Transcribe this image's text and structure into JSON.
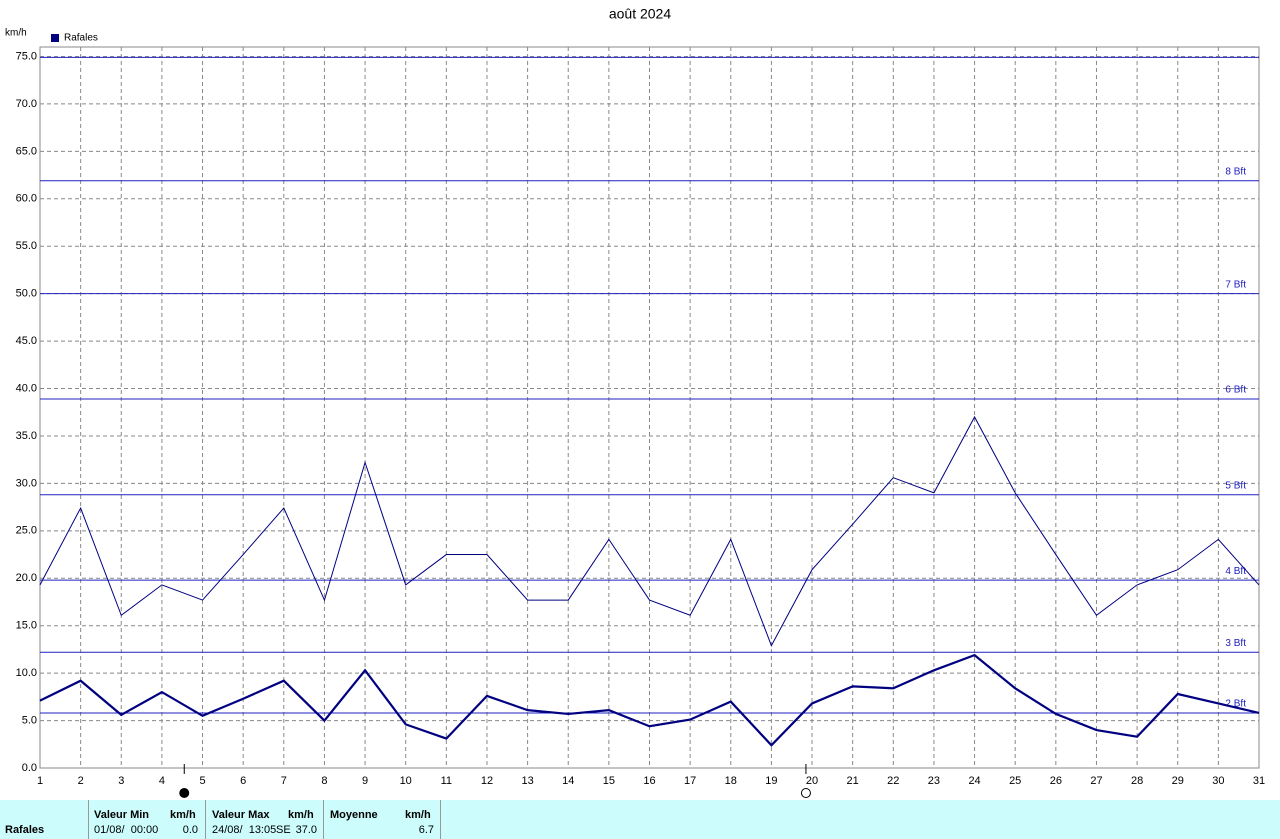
{
  "chart_data": {
    "type": "line",
    "title": "août 2024",
    "y_label": "km/h",
    "x": [
      1,
      2,
      3,
      4,
      5,
      6,
      7,
      8,
      9,
      10,
      11,
      12,
      13,
      14,
      15,
      16,
      17,
      18,
      19,
      20,
      21,
      22,
      23,
      24,
      25,
      26,
      27,
      28,
      29,
      30,
      31
    ],
    "series": [
      {
        "name": "Rafales",
        "color": "#000080",
        "width": 1,
        "values": [
          19.3,
          27.4,
          16.1,
          19.3,
          17.7,
          22.5,
          27.4,
          17.7,
          32.2,
          19.3,
          22.5,
          22.5,
          17.7,
          17.7,
          24.1,
          17.7,
          16.1,
          24.1,
          12.9,
          20.9,
          25.7,
          30.6,
          29.0,
          37.0,
          29.0,
          22.5,
          16.1,
          19.3,
          20.9,
          24.1,
          19.3
        ]
      },
      {
        "color": "#000080",
        "width": 2.2,
        "values": [
          7.1,
          9.2,
          5.6,
          8.0,
          5.5,
          7.3,
          9.2,
          5.0,
          10.3,
          4.6,
          3.1,
          7.6,
          6.1,
          5.7,
          6.1,
          4.4,
          5.1,
          7.0,
          2.4,
          6.8,
          8.6,
          8.4,
          10.3,
          11.9,
          8.4,
          5.7,
          4.0,
          3.3,
          7.8,
          6.8,
          5.8
        ]
      }
    ],
    "xlim": [
      1,
      31
    ],
    "xticks": [
      1,
      2,
      3,
      4,
      5,
      6,
      7,
      8,
      9,
      10,
      11,
      12,
      13,
      14,
      15,
      16,
      17,
      18,
      19,
      20,
      21,
      22,
      23,
      24,
      25,
      26,
      27,
      28,
      29,
      30,
      31
    ],
    "ylim": [
      0,
      76
    ],
    "yticks": [
      {
        "value": 0,
        "label": "0.0"
      },
      {
        "value": 5,
        "label": "5.0"
      },
      {
        "value": 10,
        "label": "10.0"
      },
      {
        "value": 15,
        "label": "15.0"
      },
      {
        "value": 20,
        "label": "20.0"
      },
      {
        "value": 25,
        "label": "25.0"
      },
      {
        "value": 30,
        "label": "30.0"
      },
      {
        "value": 35,
        "label": "35.0"
      },
      {
        "value": 40,
        "label": "40.0"
      },
      {
        "value": 45,
        "label": "45.0"
      },
      {
        "value": 50,
        "label": "50.0"
      },
      {
        "value": 55,
        "label": "55.0"
      },
      {
        "value": 60,
        "label": "60.0"
      },
      {
        "value": 65,
        "label": "65.0"
      },
      {
        "value": 70,
        "label": "70.0"
      },
      {
        "value": 75,
        "label": "75.0"
      }
    ],
    "grid": true,
    "legend": "top-left",
    "reference_lines": [
      {
        "value": 5.8,
        "label": "2 Bft"
      },
      {
        "value": 12.2,
        "label": "3 Bft"
      },
      {
        "value": 19.8,
        "label": "4 Bft"
      },
      {
        "value": 28.8,
        "label": "5 Bft"
      },
      {
        "value": 38.9,
        "label": "6 Bft"
      },
      {
        "value": 50.0,
        "label": "7 Bft"
      },
      {
        "value": 61.9,
        "label": "8 Bft"
      },
      {
        "value": 74.9
      }
    ],
    "reference_color": "#2020c0",
    "moon_phases": [
      {
        "x": 4.55,
        "filled": true
      },
      {
        "x": 19.85,
        "filled": false
      }
    ]
  },
  "stats": {
    "row_label": "Rafales",
    "headers": [
      "Valeur Min",
      "km/h",
      "Valeur Max",
      "km/h",
      "Moyenne",
      "km/h"
    ],
    "min_date": "01/08/  00:00",
    "min_value": "0.0",
    "max_date": "24/08/  13:05",
    "max_dir": "SE",
    "max_value": "37.0",
    "mean_value": "6.7"
  }
}
